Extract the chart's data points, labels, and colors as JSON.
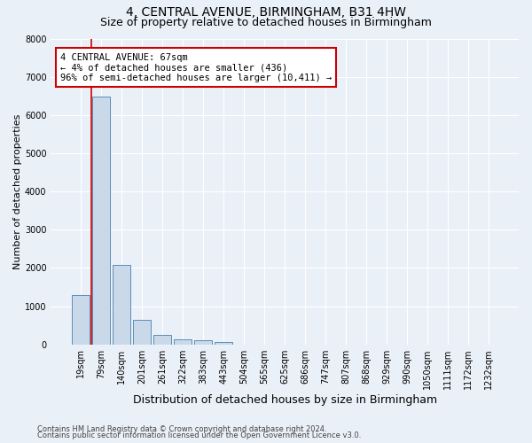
{
  "title1": "4, CENTRAL AVENUE, BIRMINGHAM, B31 4HW",
  "title2": "Size of property relative to detached houses in Birmingham",
  "xlabel": "Distribution of detached houses by size in Birmingham",
  "ylabel": "Number of detached properties",
  "annotation_title": "4 CENTRAL AVENUE: 67sqm",
  "annotation_line2": "← 4% of detached houses are smaller (436)",
  "annotation_line3": "96% of semi-detached houses are larger (10,411) →",
  "footer1": "Contains HM Land Registry data © Crown copyright and database right 2024.",
  "footer2": "Contains public sector information licensed under the Open Government Licence v3.0.",
  "bin_labels": [
    "19sqm",
    "79sqm",
    "140sqm",
    "201sqm",
    "261sqm",
    "322sqm",
    "383sqm",
    "443sqm",
    "504sqm",
    "565sqm",
    "625sqm",
    "686sqm",
    "747sqm",
    "807sqm",
    "868sqm",
    "929sqm",
    "990sqm",
    "1050sqm",
    "1111sqm",
    "1172sqm",
    "1232sqm"
  ],
  "bar_heights": [
    1300,
    6500,
    2080,
    630,
    250,
    140,
    100,
    60,
    0,
    0,
    0,
    0,
    0,
    0,
    0,
    0,
    0,
    0,
    0,
    0,
    0
  ],
  "bar_color": "#c9d9ea",
  "bar_edge_color": "#5b8db8",
  "highlight_line_color": "#cc0000",
  "annotation_box_color": "#ffffff",
  "annotation_box_edge": "#cc0000",
  "ylim": [
    0,
    8000
  ],
  "yticks": [
    0,
    1000,
    2000,
    3000,
    4000,
    5000,
    6000,
    7000,
    8000
  ],
  "background_color": "#eaf0f8",
  "plot_bg_color": "#eaf0f8",
  "grid_color": "#ffffff",
  "title1_fontsize": 10,
  "title2_fontsize": 9,
  "ylabel_fontsize": 8,
  "xlabel_fontsize": 9,
  "tick_fontsize": 7,
  "annotation_fontsize": 7.5,
  "footer_fontsize": 6
}
